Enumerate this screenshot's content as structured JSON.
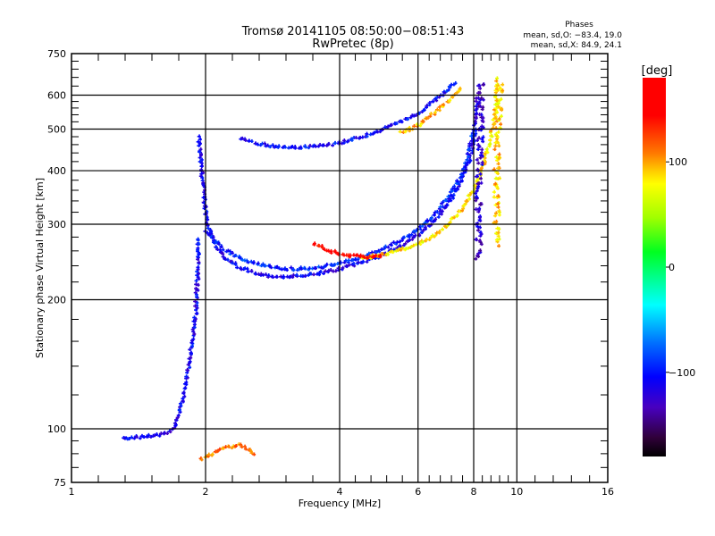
{
  "chart_data": {
    "type": "scatter",
    "title": "Tromsø 20141105 08:50:00−08:51:43",
    "subtitle": "RwPretec (8p)",
    "xlabel": "Frequency [MHz]",
    "ylabel": "Stationary phase Virtual Height [km]",
    "xscale": "log",
    "yscale": "log",
    "xlim": [
      1,
      16
    ],
    "ylim": [
      75,
      750
    ],
    "x_ticks": [
      1,
      2,
      4,
      6,
      8,
      10,
      16
    ],
    "x_tick_labels": [
      "1",
      "2",
      "4",
      "6",
      "8",
      "10",
      "16"
    ],
    "y_ticks": [
      75,
      100,
      200,
      300,
      400,
      500,
      600,
      750
    ],
    "y_tick_labels": [
      "75",
      "100",
      "200",
      "300",
      "400",
      "500",
      "600",
      "750"
    ],
    "grid": true,
    "stats": {
      "title": "Phases",
      "o_line": "mean, sd,O:  −83.4, 19.0",
      "x_line": "mean, sd,X:  84.9, 24.1"
    },
    "colorbar": {
      "label": "[deg]",
      "range": [
        -180,
        180
      ],
      "ticks": [
        100,
        0,
        -100
      ],
      "tick_labels": [
        "100",
        "0",
        "−100"
      ],
      "placement": "right"
    },
    "series": [
      {
        "name": "F-trace O-mode lower",
        "phase": -112,
        "points": [
          [
            1.93,
            480
          ],
          [
            1.95,
            420
          ],
          [
            1.97,
            380
          ],
          [
            1.99,
            340
          ],
          [
            2.02,
            300
          ],
          [
            2.1,
            270
          ],
          [
            2.2,
            250
          ],
          [
            2.4,
            237
          ],
          [
            2.7,
            228
          ],
          [
            3.0,
            226
          ],
          [
            3.5,
            229
          ],
          [
            4.0,
            236
          ],
          [
            4.5,
            245
          ],
          [
            5.0,
            255
          ],
          [
            5.5,
            268
          ],
          [
            6.0,
            283
          ],
          [
            6.5,
            305
          ],
          [
            7.0,
            335
          ],
          [
            7.4,
            370
          ],
          [
            7.8,
            420
          ],
          [
            8.0,
            470
          ],
          [
            8.1,
            530
          ],
          [
            8.15,
            600
          ]
        ]
      },
      {
        "name": "F-trace O-mode upper",
        "phase": -95,
        "points": [
          [
            2.0,
            290
          ],
          [
            2.2,
            262
          ],
          [
            2.5,
            245
          ],
          [
            3.0,
            236
          ],
          [
            3.5,
            237
          ],
          [
            4.0,
            243
          ],
          [
            4.5,
            252
          ],
          [
            5.0,
            263
          ],
          [
            5.5,
            276
          ],
          [
            6.0,
            292
          ],
          [
            6.5,
            315
          ],
          [
            7.0,
            345
          ],
          [
            7.5,
            390
          ],
          [
            7.8,
            440
          ],
          [
            8.0,
            500
          ]
        ]
      },
      {
        "name": "F-trace X-mode",
        "phase": 85,
        "points": [
          [
            4.5,
            250
          ],
          [
            5.0,
            255
          ],
          [
            5.5,
            262
          ],
          [
            6.0,
            270
          ],
          [
            6.5,
            282
          ],
          [
            7.0,
            300
          ],
          [
            7.5,
            325
          ],
          [
            8.0,
            360
          ],
          [
            8.4,
            410
          ],
          [
            8.7,
            470
          ],
          [
            8.9,
            530
          ],
          [
            9.0,
            600
          ],
          [
            9.05,
            660
          ]
        ]
      },
      {
        "name": "Oblique trace",
        "phase": 150,
        "points": [
          [
            3.5,
            270
          ],
          [
            3.8,
            260
          ],
          [
            4.2,
            253
          ],
          [
            4.6,
            252
          ],
          [
            5.0,
            253
          ]
        ]
      },
      {
        "name": "Multi-hop O",
        "phase": -105,
        "points": [
          [
            2.4,
            475
          ],
          [
            2.7,
            460
          ],
          [
            3.0,
            453
          ],
          [
            3.5,
            455
          ],
          [
            4.0,
            465
          ],
          [
            4.5,
            480
          ],
          [
            5.0,
            500
          ],
          [
            5.5,
            520
          ],
          [
            6.0,
            545
          ],
          [
            6.5,
            580
          ],
          [
            7.0,
            620
          ],
          [
            7.3,
            650
          ]
        ]
      },
      {
        "name": "Multi-hop X",
        "phase": 95,
        "points": [
          [
            5.5,
            490
          ],
          [
            6.0,
            510
          ],
          [
            6.5,
            545
          ],
          [
            7.0,
            580
          ],
          [
            7.5,
            625
          ]
        ]
      },
      {
        "name": "O vertical spread",
        "phase": -125,
        "points": [
          [
            8.2,
            250
          ],
          [
            8.2,
            350
          ],
          [
            8.25,
            450
          ],
          [
            8.3,
            550
          ],
          [
            8.3,
            650
          ]
        ]
      },
      {
        "name": "X vertical spread",
        "phase": 90,
        "points": [
          [
            9.0,
            270
          ],
          [
            9.0,
            370
          ],
          [
            9.05,
            460
          ],
          [
            9.1,
            560
          ],
          [
            9.15,
            650
          ]
        ]
      },
      {
        "name": "E-region cusp",
        "phase": -110,
        "points": [
          [
            1.3,
            95
          ],
          [
            1.45,
            96
          ],
          [
            1.6,
            97
          ],
          [
            1.7,
            100
          ],
          [
            1.75,
            110
          ],
          [
            1.8,
            125
          ],
          [
            1.85,
            150
          ],
          [
            1.9,
            185
          ],
          [
            1.92,
            230
          ],
          [
            1.93,
            280
          ]
        ]
      },
      {
        "name": "Sporadic low",
        "phase": 110,
        "points": [
          [
            1.95,
            85
          ],
          [
            2.2,
            90
          ],
          [
            2.4,
            92
          ],
          [
            2.6,
            87
          ]
        ]
      }
    ]
  }
}
